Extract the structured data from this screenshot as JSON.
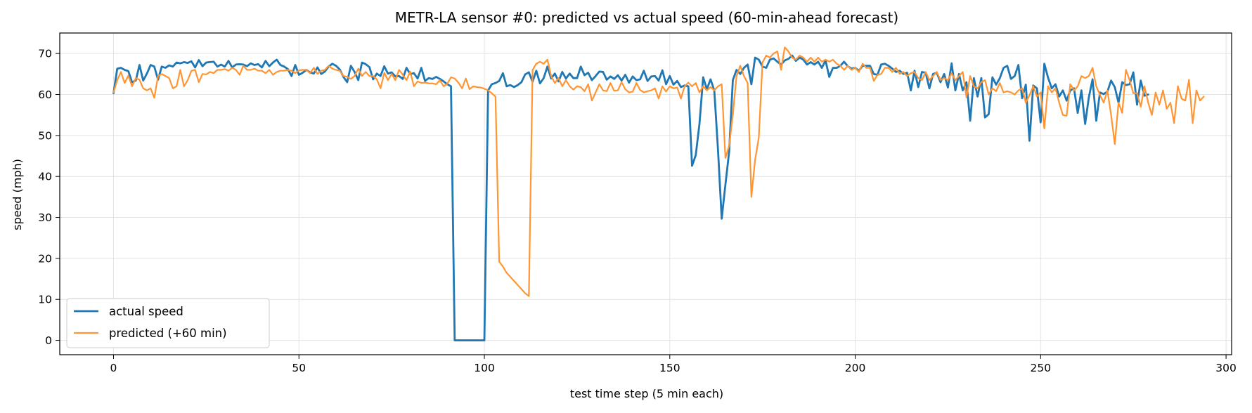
{
  "chart_data": {
    "type": "line",
    "title": "METR-LA sensor #0: predicted vs actual speed (60-min-ahead forecast)",
    "xlabel": "test time step (5 min each)",
    "ylabel": "speed (mph)",
    "xlim": [
      -14.5,
      301.5
    ],
    "ylim": [
      -3.5,
      75
    ],
    "xticks": [
      0,
      50,
      100,
      150,
      200,
      250,
      300
    ],
    "yticks": [
      0,
      10,
      20,
      30,
      40,
      50,
      60,
      70
    ],
    "grid": true,
    "legend": "lower-left",
    "series": [
      {
        "name": "actual speed",
        "color": "#1f77b4",
        "values": [
          60.3,
          66.3,
          66.5,
          66.0,
          65.7,
          63.0,
          63.4,
          67.2,
          63.4,
          65.1,
          67.2,
          66.8,
          63.6,
          66.8,
          66.5,
          67.1,
          66.8,
          67.8,
          67.6,
          67.9,
          67.7,
          68.1,
          66.6,
          68.4,
          66.9,
          67.8,
          67.9,
          68.0,
          66.8,
          67.3,
          66.8,
          68.2,
          66.6,
          67.3,
          67.4,
          67.3,
          66.9,
          67.6,
          67.2,
          67.4,
          66.6,
          68.2,
          66.9,
          67.8,
          68.5,
          67.2,
          66.8,
          66.2,
          64.5,
          67.2,
          64.8,
          65.3,
          66.0,
          65.4,
          65.1,
          66.6,
          65.0,
          65.6,
          66.8,
          67.5,
          67.0,
          66.1,
          64.3,
          63.0,
          67.0,
          65.5,
          63.5,
          67.8,
          67.4,
          66.7,
          63.7,
          65.1,
          64.5,
          66.9,
          65.1,
          65.4,
          64.4,
          64.5,
          63.8,
          66.5,
          65.0,
          65.2,
          63.9,
          66.5,
          63.3,
          64.0,
          63.8,
          64.3,
          63.8,
          63.2,
          62.5,
          62.0,
          0,
          0,
          0,
          0,
          0,
          0,
          0,
          0,
          0,
          61.0,
          62.5,
          62.8,
          63.3,
          65.2,
          62.0,
          62.3,
          61.8,
          62.3,
          63.0,
          64.9,
          65.4,
          63.1,
          65.8,
          62.7,
          64.0,
          66.8,
          63.9,
          65.1,
          63.2,
          65.5,
          63.9,
          65.1,
          64.0,
          64.0,
          66.8,
          64.7,
          65.3,
          63.5,
          64.5,
          65.6,
          65.5,
          63.6,
          64.4,
          63.8,
          64.7,
          63.4,
          64.8,
          62.9,
          64.4,
          63.5,
          63.7,
          65.8,
          63.3,
          64.4,
          64.5,
          63.4,
          65.9,
          62.5,
          64.5,
          62.4,
          63.3,
          61.8,
          62.2,
          62.0,
          42.6,
          45.2,
          52.8,
          64.2,
          61.3,
          63.7,
          61.0,
          46.5,
          29.7,
          38.0,
          46.0,
          63.5,
          66.0,
          65.0,
          66.5,
          67.3,
          62.5,
          69.0,
          68.5,
          66.8,
          66.5,
          68.5,
          68.8,
          68.0,
          67.3,
          68.3,
          68.7,
          69.5,
          68.2,
          69.0,
          68.5,
          67.3,
          67.9,
          67.3,
          68.0,
          66.5,
          68.3,
          64.3,
          66.5,
          66.5,
          67.0,
          68.0,
          66.9,
          66.3,
          66.5,
          65.8,
          67.0,
          67.0,
          67.0,
          65.0,
          64.8,
          67.3,
          67.5,
          67.0,
          66.3,
          65.5,
          65.8,
          65.0,
          65.3,
          61.0,
          65.8,
          61.8,
          65.5,
          65.3,
          61.5,
          65.0,
          65.3,
          63.0,
          65.0,
          61.7,
          67.6,
          61.0,
          65.0,
          61.0,
          63.0,
          53.6,
          64.0,
          59.5,
          64.0,
          54.4,
          55.2,
          64.2,
          62.4,
          64.0,
          66.5,
          67.0,
          63.8,
          64.5,
          67.2,
          59.1,
          62.4,
          48.7,
          62.2,
          61.5,
          53.2,
          67.5,
          64.1,
          61.5,
          62.5,
          59.5,
          61.0,
          58.5,
          61.0,
          61.5,
          55.5,
          61.0,
          52.8,
          59.3,
          63.7,
          53.6,
          60.5,
          60.1,
          60.7,
          63.4,
          61.8,
          58.0,
          63.0,
          62.3,
          62.5,
          65.4,
          57.5,
          63.4,
          59.7,
          60.0
        ]
      },
      {
        "name": "predicted (+60 min)",
        "color": "#ff9533",
        "values": [
          60.5,
          63.5,
          65.5,
          62.8,
          64.6,
          62.0,
          64.0,
          63.6,
          61.5,
          61.0,
          61.5,
          59.2,
          64.5,
          65.0,
          64.5,
          64.0,
          61.5,
          62.0,
          66.0,
          62.0,
          63.5,
          65.8,
          66.0,
          63.0,
          65.0,
          64.9,
          65.5,
          65.2,
          66.0,
          66.0,
          66.2,
          65.8,
          66.5,
          66.0,
          64.8,
          67.0,
          66.0,
          66.0,
          66.3,
          65.8,
          65.8,
          65.2,
          66.0,
          64.8,
          65.5,
          65.8,
          65.8,
          66.0,
          65.8,
          65.2,
          65.9,
          66.0,
          66.0,
          65.2,
          66.5,
          65.0,
          65.8,
          66.0,
          67.0,
          66.3,
          66.0,
          65.8,
          64.5,
          64.3,
          63.8,
          64.5,
          66.3,
          64.5,
          65.5,
          64.5,
          64.5,
          63.7,
          61.5,
          65.3,
          63.5,
          65.0,
          63.5,
          66.0,
          64.8,
          63.5,
          65.6,
          62.0,
          63.2,
          62.8,
          62.9,
          62.7,
          62.7,
          62.5,
          63.5,
          62.0,
          62.6,
          64.2,
          63.9,
          62.9,
          61.5,
          63.9,
          61.3,
          62.0,
          61.8,
          61.7,
          61.4,
          61.0,
          60.3,
          59.5,
          19.2,
          18.0,
          16.5,
          15.5,
          14.5,
          13.5,
          12.5,
          11.5,
          10.8,
          66.0,
          67.5,
          68.0,
          67.5,
          68.5,
          64.5,
          62.8,
          64.0,
          62.0,
          63.5,
          62.0,
          61.2,
          62.0,
          61.8,
          60.8,
          62.5,
          58.5,
          60.5,
          62.5,
          61.0,
          60.8,
          62.8,
          60.9,
          61.0,
          63.0,
          61.3,
          60.5,
          60.7,
          62.8,
          61.1,
          60.5,
          60.8,
          61.0,
          61.5,
          59.0,
          62.0,
          60.7,
          62.0,
          61.5,
          61.7,
          59.0,
          62.0,
          62.9,
          62.0,
          62.8,
          60.5,
          62.0,
          61.0,
          61.8,
          61.0,
          62.0,
          62.5,
          44.5,
          47.5,
          55.0,
          64.5,
          67.0,
          64.5,
          62.8,
          35.0,
          44.0,
          49.5,
          67.8,
          69.5,
          69.0,
          70.0,
          70.5,
          66.0,
          71.5,
          70.5,
          69.0,
          68.5,
          69.5,
          69.0,
          68.0,
          69.0,
          68.0,
          69.0,
          68.0,
          68.5,
          68.0,
          68.5,
          67.5,
          67.0,
          66.0,
          67.0,
          66.0,
          66.5,
          65.5,
          67.5,
          66.5,
          66.5,
          63.3,
          64.8,
          65.0,
          66.5,
          66.5,
          65.5,
          66.5,
          65.0,
          65.5,
          64.5,
          65.2,
          65.5,
          64.0,
          63.5,
          65.5,
          63.5,
          64.5,
          65.5,
          63.5,
          64.0,
          63.5,
          65.2,
          63.5,
          64.5,
          65.5,
          59.3,
          64.5,
          62.0,
          61.5,
          63.0,
          63.5,
          60.0,
          61.5,
          60.8,
          62.8,
          60.5,
          60.8,
          60.5,
          60.0,
          61.0,
          61.5,
          58.0,
          59.8,
          62.0,
          59.5,
          60.5,
          51.7,
          62.0,
          60.5,
          61.5,
          58.0,
          55.0,
          54.8,
          62.5,
          61.0,
          62.0,
          64.5,
          64.0,
          64.5,
          66.5,
          62.0,
          59.9,
          58.0,
          61.0,
          55.0,
          47.9,
          58.0,
          55.5,
          66.0,
          63.5,
          60.3,
          60.3,
          57.0,
          62.0,
          58.0,
          55.0,
          60.5,
          57.5,
          61.0,
          56.5,
          58.0,
          53.0,
          62.0,
          59.0,
          58.5,
          63.6,
          53.0,
          61.0,
          58.5,
          59.5
        ]
      }
    ]
  }
}
